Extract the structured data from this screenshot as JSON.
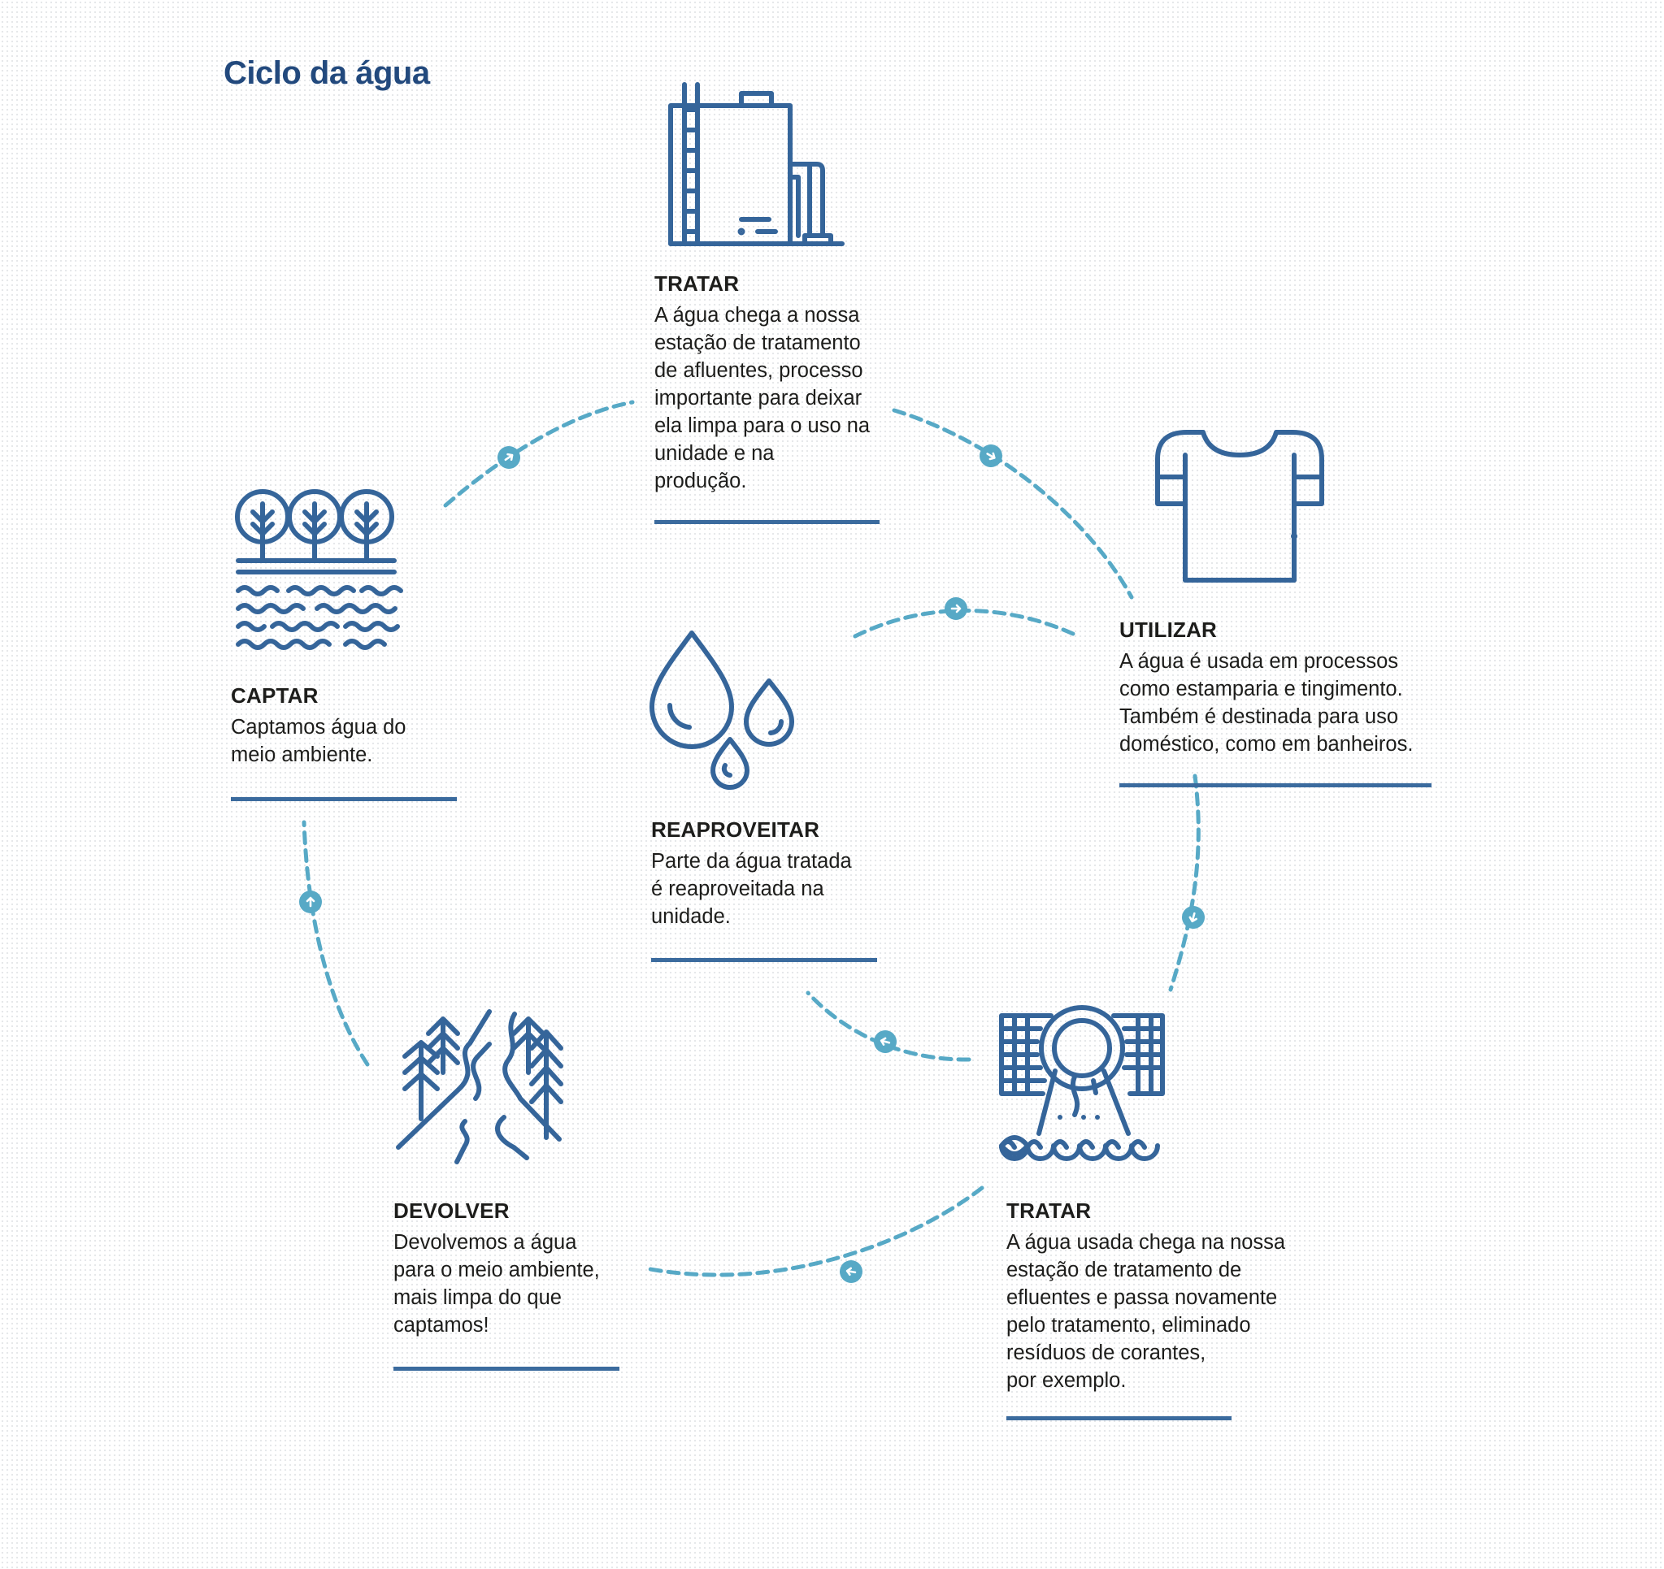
{
  "title": "Ciclo da água",
  "colors": {
    "icon": "#35659a",
    "flow": "#57a9c6",
    "rule": "#3b6b9e",
    "title": "#22497d",
    "text": "#1d1d1b"
  },
  "steps": [
    {
      "id": "tratar-top",
      "icon": "treatment-station-icon",
      "title": "TRATAR",
      "text": "A água chega a nossa\nestação de tratamento\nde afluentes, processo\nimportante para deixar\nela limpa para o uso na\nunidade e na\nprodução."
    },
    {
      "id": "utilizar",
      "icon": "t-shirt-icon",
      "title": "UTILIZAR",
      "text": "A água é usada em processos\ncomo estamparia e tingimento.\nTambém é destinada para uso\ndoméstico, como em banheiros."
    },
    {
      "id": "captar",
      "icon": "trees-water-icon",
      "title": "CAPTAR",
      "text": "Captamos água do\nmeio ambiente."
    },
    {
      "id": "reaproveitar",
      "icon": "water-drops-icon",
      "title": "REAPROVEITAR",
      "text": "Parte da água tratada\né reaproveitada na\nunidade."
    },
    {
      "id": "devolver",
      "icon": "forest-river-icon",
      "title": "DEVOLVER",
      "text": "Devolvemos a água\npara o meio ambiente,\nmais limpa do que\ncaptamos!"
    },
    {
      "id": "tratar-bottom",
      "icon": "effluent-pipe-icon",
      "title": "TRATAR",
      "text": "A água usada chega na nossa\nestação de tratamento de\nefluentes e passa novamente\npelo tratamento, eliminado\nresíduos de corantes,\npor exemplo."
    }
  ]
}
